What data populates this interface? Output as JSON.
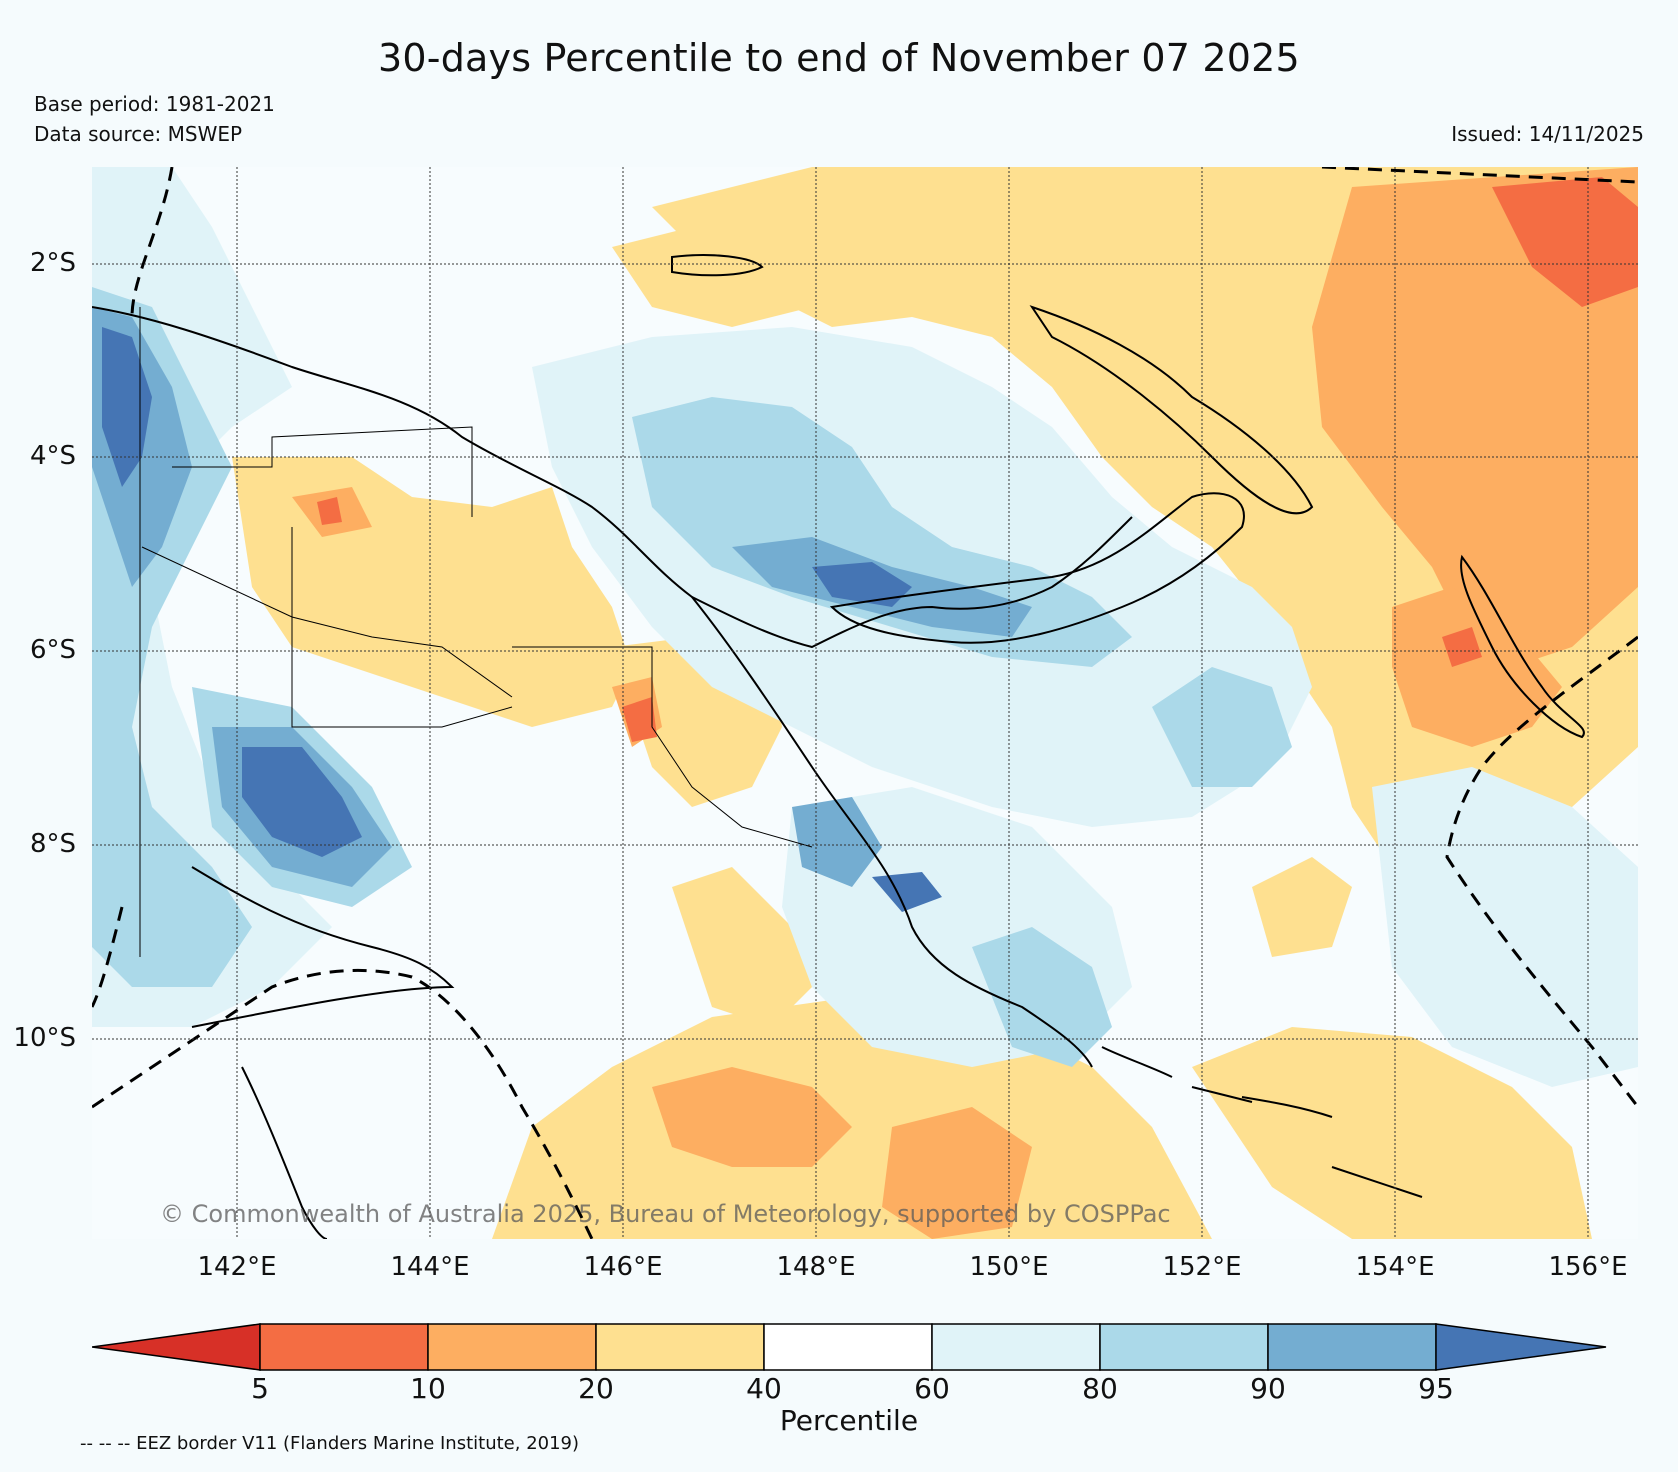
{
  "title": "30-days Percentile to end of November 07 2025",
  "base_period": "Base period: 1981-2021",
  "data_source": "Data source: MSWEP",
  "issued": "Issued: 14/11/2025",
  "lat_labels": [
    "2°S",
    "4°S",
    "6°S",
    "8°S",
    "10°S"
  ],
  "lon_labels": [
    "142°E",
    "144°E",
    "146°E",
    "148°E",
    "150°E",
    "152°E",
    "154°E",
    "156°E"
  ],
  "watermark": "© Commonwealth of Australia 2025, Bureau of Meteorology, supported by COSPPac",
  "colorbar": {
    "ticks": [
      "5",
      "10",
      "20",
      "40",
      "60",
      "80",
      "90",
      "95"
    ],
    "label": "Percentile",
    "colors": {
      "below_5": "#d73027",
      "p5_10": "#f46d43",
      "p10_20": "#fdae61",
      "p20_40": "#fee090",
      "p40_60": "#ffffff",
      "p60_80": "#e0f3f8",
      "p80_90": "#abd9e9",
      "p90_95": "#74add1",
      "above_95": "#4575b4"
    }
  },
  "footnote": "-- -- -- EEZ border V11 (Flanders Marine Institute, 2019)"
}
